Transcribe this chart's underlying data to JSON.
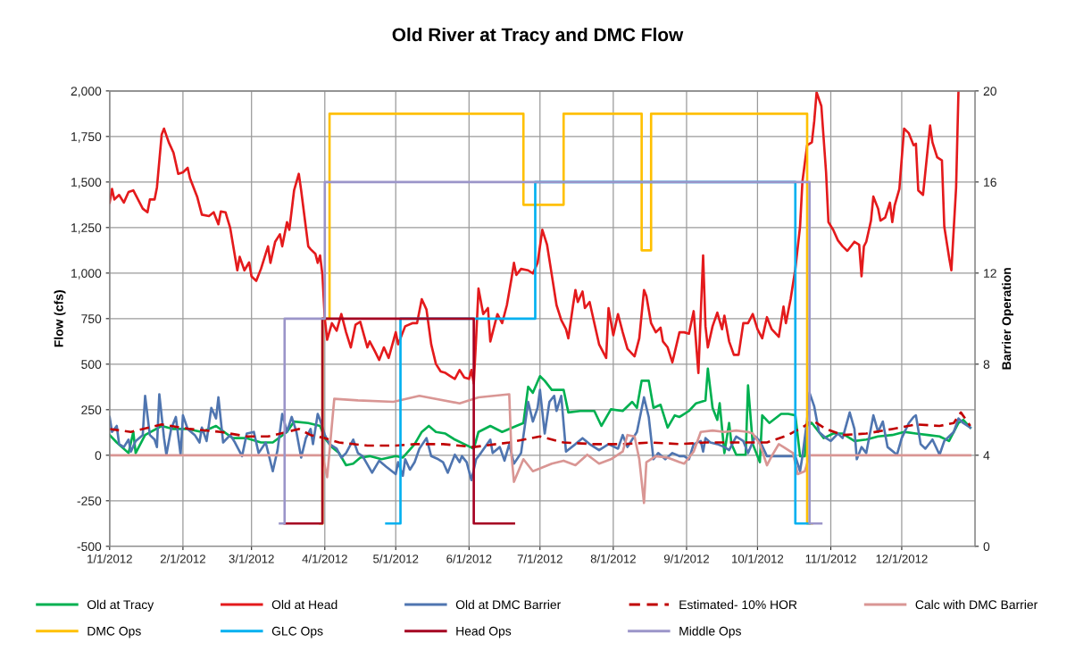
{
  "chart_data": {
    "type": "line",
    "title": "Old River at Tracy and DMC Flow",
    "ylabel": "Flow (cfs)",
    "y2label": "Barrier Operation",
    "xlim": [
      "2012-01-01",
      "2013-01-01"
    ],
    "xticks": [
      {
        "value": "2012-01-01",
        "label": "1/1/2012"
      },
      {
        "value": "2012-02-01",
        "label": "2/1/2012"
      },
      {
        "value": "2012-03-01",
        "label": "3/1/2012"
      },
      {
        "value": "2012-04-01",
        "label": "4/1/2012"
      },
      {
        "value": "2012-05-01",
        "label": "5/1/2012"
      },
      {
        "value": "2012-06-01",
        "label": "6/1/2012"
      },
      {
        "value": "2012-07-01",
        "label": "7/1/2012"
      },
      {
        "value": "2012-08-01",
        "label": "8/1/2012"
      },
      {
        "value": "2012-09-01",
        "label": "9/1/2012"
      },
      {
        "value": "2012-10-01",
        "label": "10/1/2012"
      },
      {
        "value": "2012-11-01",
        "label": "11/1/2012"
      },
      {
        "value": "2012-12-01",
        "label": "12/1/2012"
      }
    ],
    "ylim": [
      -500,
      2000
    ],
    "yticks": [
      -500,
      -250,
      0,
      250,
      500,
      750,
      {
        "value": 1000,
        "label": "1,000"
      },
      {
        "value": 1250,
        "label": "1,250"
      },
      {
        "value": 1500,
        "label": "1,500"
      },
      {
        "value": 1750,
        "label": "1,750"
      },
      {
        "value": 2000,
        "label": "2,000"
      }
    ],
    "y2lim": [
      0,
      20
    ],
    "y2ticks": [
      0,
      4,
      8,
      12,
      16,
      20
    ],
    "grid": true,
    "legend": "bottom",
    "marker": "none",
    "line_style": "solid",
    "series": [
      {
        "name": "Old at Tracy",
        "color": "#00b050",
        "x": [
          "2012-01-01",
          "2012-01-04",
          "2012-01-09",
          "2012-01-11",
          "2012-01-12",
          "2012-01-16",
          "2012-01-23",
          "2012-01-28",
          "2012-02-03",
          "2012-02-09",
          "2012-02-15",
          "2012-02-22",
          "2012-02-28",
          "2012-03-05",
          "2012-03-10",
          "2012-03-16",
          "2012-03-19",
          "2012-03-25",
          "2012-03-30",
          "2012-04-01",
          "2012-04-04",
          "2012-04-07",
          "2012-04-10",
          "2012-04-13",
          "2012-04-16",
          "2012-04-20",
          "2012-04-25",
          "2012-05-01",
          "2012-05-04",
          "2012-05-09",
          "2012-05-12",
          "2012-05-15",
          "2012-05-18",
          "2012-05-22",
          "2012-05-26",
          "2012-05-30",
          "2012-06-03",
          "2012-06-05",
          "2012-06-10",
          "2012-06-15",
          "2012-06-21",
          "2012-06-24",
          "2012-06-26",
          "2012-06-28",
          "2012-07-01",
          "2012-07-03",
          "2012-07-06",
          "2012-07-11",
          "2012-07-13",
          "2012-07-18",
          "2012-07-24",
          "2012-07-27",
          "2012-07-31",
          "2012-08-05",
          "2012-08-09",
          "2012-08-11",
          "2012-08-13",
          "2012-08-16",
          "2012-08-18",
          "2012-08-21",
          "2012-08-24",
          "2012-08-27",
          "2012-08-29",
          "2012-09-02",
          "2012-09-05",
          "2012-09-09",
          "2012-09-10",
          "2012-09-12",
          "2012-09-14",
          "2012-09-15",
          "2012-09-17",
          "2012-09-19",
          "2012-09-20",
          "2012-09-22",
          "2012-09-26",
          "2012-09-27",
          "2012-09-29",
          "2012-10-02",
          "2012-10-03",
          "2012-10-06",
          "2012-10-11",
          "2012-10-14",
          "2012-10-17",
          "2012-10-19",
          "2012-10-21",
          "2012-10-22",
          "2012-10-24",
          "2012-10-29",
          "2012-11-02",
          "2012-11-06",
          "2012-11-11",
          "2012-11-16",
          "2012-11-21",
          "2012-11-27",
          "2012-12-02",
          "2012-12-07",
          "2012-12-12",
          "2012-12-17",
          "2012-12-21",
          "2012-12-25",
          "2012-12-27",
          "2012-12-30"
        ],
        "values": [
          111,
          70,
          12,
          128,
          12,
          111,
          161,
          144,
          144,
          128,
          161,
          94,
          94,
          70,
          70,
          128,
          185,
          177,
          161,
          94,
          45,
          12,
          -55,
          -46,
          -13,
          -5,
          -22,
          -5,
          -13,
          61,
          128,
          161,
          128,
          119,
          86,
          61,
          36,
          128,
          161,
          128,
          161,
          177,
          376,
          343,
          434,
          409,
          359,
          359,
          235,
          243,
          243,
          161,
          252,
          243,
          293,
          260,
          409,
          409,
          260,
          277,
          152,
          219,
          210,
          243,
          285,
          301,
          475,
          260,
          194,
          285,
          12,
          177,
          61,
          3,
          3,
          384,
          61,
          -38,
          219,
          177,
          227,
          227,
          219,
          -5,
          -5,
          161,
          177,
          94,
          119,
          119,
          78,
          86,
          103,
          111,
          128,
          119,
          111,
          103,
          78,
          177,
          194,
          152
        ]
      },
      {
        "name": "Old at Head",
        "color": "#e41a1c",
        "x": [
          "2012-01-01",
          "2012-01-02",
          "2012-01-03",
          "2012-01-05",
          "2012-01-07",
          "2012-01-09",
          "2012-01-11",
          "2012-01-13",
          "2012-01-15",
          "2012-01-17",
          "2012-01-18",
          "2012-01-20",
          "2012-01-21",
          "2012-01-23",
          "2012-01-24",
          "2012-01-26",
          "2012-01-28",
          "2012-01-30",
          "2012-02-01",
          "2012-02-03",
          "2012-02-04",
          "2012-02-07",
          "2012-02-09",
          "2012-02-12",
          "2012-02-14",
          "2012-02-16",
          "2012-02-17",
          "2012-02-19",
          "2012-02-21",
          "2012-02-24",
          "2012-02-25",
          "2012-02-27",
          "2012-02-29",
          "2012-03-01",
          "2012-03-03",
          "2012-03-05",
          "2012-03-07",
          "2012-03-08",
          "2012-03-09",
          "2012-03-11",
          "2012-03-13",
          "2012-03-14",
          "2012-03-16",
          "2012-03-17",
          "2012-03-19",
          "2012-03-21",
          "2012-03-22",
          "2012-03-25",
          "2012-03-26",
          "2012-03-28",
          "2012-03-29",
          "2012-03-30",
          "2012-03-31",
          "2012-04-01",
          "2012-04-02",
          "2012-04-04",
          "2012-04-06",
          "2012-04-08",
          "2012-04-10",
          "2012-04-12",
          "2012-04-14",
          "2012-04-16",
          "2012-04-19",
          "2012-04-20",
          "2012-04-22",
          "2012-04-24",
          "2012-04-26",
          "2012-04-28",
          "2012-05-01",
          "2012-05-02",
          "2012-05-05",
          "2012-05-08",
          "2012-05-10",
          "2012-05-12",
          "2012-05-14",
          "2012-05-16",
          "2012-05-18",
          "2012-05-20",
          "2012-05-22",
          "2012-05-24",
          "2012-05-26",
          "2012-05-28",
          "2012-05-30",
          "2012-06-01",
          "2012-06-02",
          "2012-06-03",
          "2012-06-04",
          "2012-06-05",
          "2012-06-07",
          "2012-06-09",
          "2012-06-10",
          "2012-06-12",
          "2012-06-13",
          "2012-06-15",
          "2012-06-17",
          "2012-06-19",
          "2012-06-20",
          "2012-06-21",
          "2012-06-23",
          "2012-06-26",
          "2012-06-28",
          "2012-06-30",
          "2012-07-02",
          "2012-07-04",
          "2012-07-06",
          "2012-07-08",
          "2012-07-10",
          "2012-07-12",
          "2012-07-13",
          "2012-07-15",
          "2012-07-16",
          "2012-07-17",
          "2012-07-19",
          "2012-07-20",
          "2012-07-22",
          "2012-07-24",
          "2012-07-26",
          "2012-07-29",
          "2012-07-30",
          "2012-08-01",
          "2012-08-03",
          "2012-08-05",
          "2012-08-07",
          "2012-08-10",
          "2012-08-12",
          "2012-08-14",
          "2012-08-15",
          "2012-08-17",
          "2012-08-19",
          "2012-08-21",
          "2012-08-22",
          "2012-08-24",
          "2012-08-26",
          "2012-08-29",
          "2012-08-31",
          "2012-09-02",
          "2012-09-04",
          "2012-09-06",
          "2012-09-08",
          "2012-09-09",
          "2012-09-10",
          "2012-09-12",
          "2012-09-14",
          "2012-09-16",
          "2012-09-17",
          "2012-09-19",
          "2012-09-21",
          "2012-09-23",
          "2012-09-25",
          "2012-09-27",
          "2012-09-29",
          "2012-10-01",
          "2012-10-03",
          "2012-10-05",
          "2012-10-07",
          "2012-10-10",
          "2012-10-12",
          "2012-10-13",
          "2012-10-15",
          "2012-10-17",
          "2012-10-19",
          "2012-10-20",
          "2012-10-22",
          "2012-10-24",
          "2012-10-25",
          "2012-10-26",
          "2012-10-28",
          "2012-10-30",
          "2012-10-31",
          "2012-11-02",
          "2012-11-04",
          "2012-11-06",
          "2012-11-08",
          "2012-11-11",
          "2012-11-13",
          "2012-11-14",
          "2012-11-15",
          "2012-11-16",
          "2012-11-18",
          "2012-11-19",
          "2012-11-21",
          "2012-11-22",
          "2012-11-24",
          "2012-11-26",
          "2012-11-27",
          "2012-11-28",
          "2012-11-30",
          "2012-12-02",
          "2012-12-04",
          "2012-12-06",
          "2012-12-07",
          "2012-12-08",
          "2012-12-10",
          "2012-12-13",
          "2012-12-14",
          "2012-12-16",
          "2012-12-18",
          "2012-12-19",
          "2012-12-21",
          "2012-12-22",
          "2012-12-24",
          "2012-12-25"
        ],
        "values": [
          1387,
          1462,
          1404,
          1429,
          1387,
          1445,
          1454,
          1404,
          1354,
          1334,
          1404,
          1404,
          1470,
          1760,
          1793,
          1718,
          1661,
          1545,
          1553,
          1578,
          1520,
          1420,
          1321,
          1313,
          1334,
          1268,
          1338,
          1334,
          1247,
          1015,
          1089,
          1015,
          1059,
          982,
          957,
          1023,
          1106,
          1147,
          1056,
          1172,
          1213,
          1147,
          1280,
          1238,
          1454,
          1545,
          1454,
          1147,
          1131,
          1106,
          1056,
          1097,
          990,
          750,
          634,
          725,
          684,
          775,
          675,
          592,
          717,
          733,
          592,
          625,
          576,
          523,
          592,
          534,
          675,
          609,
          708,
          725,
          725,
          857,
          800,
          609,
          501,
          460,
          452,
          435,
          419,
          468,
          427,
          419,
          468,
          394,
          642,
          915,
          775,
          808,
          625,
          725,
          775,
          725,
          824,
          973,
          1056,
          990,
          1023,
          1015,
          998,
          1056,
          1238,
          1155,
          990,
          824,
          742,
          692,
          642,
          824,
          907,
          841,
          899,
          808,
          841,
          725,
          609,
          534,
          808,
          659,
          775,
          675,
          584,
          543,
          642,
          907,
          874,
          725,
          675,
          700,
          625,
          592,
          510,
          675,
          675,
          667,
          791,
          452,
          1097,
          708,
          592,
          708,
          783,
          692,
          766,
          625,
          551,
          551,
          725,
          725,
          775,
          692,
          642,
          758,
          692,
          650,
          816,
          725,
          857,
          1023,
          1255,
          1503,
          1702,
          1718,
          1834,
          1992,
          1917,
          1553,
          1280,
          1238,
          1180,
          1147,
          1122,
          1172,
          1155,
          982,
          1147,
          1172,
          1288,
          1420,
          1354,
          1288,
          1305,
          1387,
          1280,
          1371,
          1462,
          1793,
          1768,
          1702,
          1710,
          1454,
          1429,
          1810,
          1718,
          1636,
          1619,
          1255,
          1089,
          1015,
          1470,
          2000
        ]
      },
      {
        "name": "Old at DMC Barrier",
        "color": "#4f75b0",
        "x": [
          "2012-01-01",
          "2012-01-02",
          "2012-01-04",
          "2012-01-05",
          "2012-01-07",
          "2012-01-09",
          "2012-01-10",
          "2012-01-12",
          "2012-01-15",
          "2012-01-16",
          "2012-01-18",
          "2012-01-20",
          "2012-01-21",
          "2012-01-22",
          "2012-01-24",
          "2012-01-25",
          "2012-01-27",
          "2012-01-29",
          "2012-01-31",
          "2012-02-01",
          "2012-02-03",
          "2012-02-06",
          "2012-02-08",
          "2012-02-09",
          "2012-02-11",
          "2012-02-13",
          "2012-02-15",
          "2012-02-16",
          "2012-02-18",
          "2012-02-21",
          "2012-02-23",
          "2012-02-26",
          "2012-02-28",
          "2012-03-02",
          "2012-03-04",
          "2012-03-07",
          "2012-03-10",
          "2012-03-12",
          "2012-03-14",
          "2012-03-16",
          "2012-03-18",
          "2012-03-20",
          "2012-03-22",
          "2012-03-24",
          "2012-03-26",
          "2012-03-27",
          "2012-03-29",
          "2012-03-30",
          "2012-04-01",
          "2012-04-03",
          "2012-04-06",
          "2012-04-08",
          "2012-04-10",
          "2012-04-13",
          "2012-04-15",
          "2012-04-17",
          "2012-04-21",
          "2012-04-24",
          "2012-04-27",
          "2012-05-01",
          "2012-05-02",
          "2012-05-04",
          "2012-05-05",
          "2012-05-07",
          "2012-05-09",
          "2012-05-11",
          "2012-05-14",
          "2012-05-16",
          "2012-05-19",
          "2012-05-21",
          "2012-05-23",
          "2012-05-26",
          "2012-05-28",
          "2012-05-29",
          "2012-05-31",
          "2012-06-02",
          "2012-06-04",
          "2012-06-06",
          "2012-06-10",
          "2012-06-11",
          "2012-06-14",
          "2012-06-16",
          "2012-06-18",
          "2012-06-20",
          "2012-06-23",
          "2012-06-26",
          "2012-06-28",
          "2012-06-30",
          "2012-07-01",
          "2012-07-03",
          "2012-07-05",
          "2012-07-07",
          "2012-07-08",
          "2012-07-10",
          "2012-07-12",
          "2012-07-16",
          "2012-07-19",
          "2012-07-22",
          "2012-07-26",
          "2012-07-30",
          "2012-08-03",
          "2012-08-05",
          "2012-08-07",
          "2012-08-11",
          "2012-08-14",
          "2012-08-16",
          "2012-08-18",
          "2012-08-20",
          "2012-08-23",
          "2012-08-26",
          "2012-08-29",
          "2012-08-31",
          "2012-09-02",
          "2012-09-04",
          "2012-09-07",
          "2012-09-08",
          "2012-09-09",
          "2012-09-11",
          "2012-09-14",
          "2012-09-17",
          "2012-09-19",
          "2012-09-22",
          "2012-09-25",
          "2012-09-27",
          "2012-09-30",
          "2012-10-02",
          "2012-10-05",
          "2012-10-08",
          "2012-10-12",
          "2012-10-17",
          "2012-10-19",
          "2012-10-20",
          "2012-10-22",
          "2012-10-23",
          "2012-10-25",
          "2012-10-27",
          "2012-10-30",
          "2012-11-01",
          "2012-11-04",
          "2012-11-06",
          "2012-11-09",
          "2012-11-11",
          "2012-11-12",
          "2012-11-14",
          "2012-11-16",
          "2012-11-19",
          "2012-11-21",
          "2012-11-23",
          "2012-11-25",
          "2012-11-29",
          "2012-12-01",
          "2012-12-04",
          "2012-12-06",
          "2012-12-07",
          "2012-12-09",
          "2012-12-11",
          "2012-12-14",
          "2012-12-17",
          "2012-12-19",
          "2012-12-23",
          "2012-12-25",
          "2012-12-27",
          "2012-12-30"
        ],
        "values": [
          210,
          128,
          161,
          61,
          45,
          86,
          20,
          78,
          111,
          326,
          111,
          86,
          45,
          335,
          94,
          3,
          144,
          210,
          3,
          219,
          144,
          111,
          70,
          152,
          78,
          260,
          202,
          318,
          70,
          111,
          70,
          -5,
          119,
          128,
          12,
          70,
          -88,
          28,
          227,
          128,
          210,
          128,
          -13,
          94,
          144,
          61,
          227,
          194,
          111,
          61,
          36,
          -13,
          12,
          86,
          12,
          -5,
          -96,
          -30,
          -63,
          -104,
          -38,
          -113,
          -22,
          -79,
          -38,
          36,
          94,
          -5,
          -22,
          -38,
          -96,
          3,
          -38,
          -5,
          -38,
          -137,
          -22,
          12,
          86,
          12,
          45,
          -30,
          61,
          -46,
          12,
          293,
          185,
          260,
          359,
          119,
          293,
          326,
          243,
          326,
          20,
          61,
          94,
          61,
          28,
          61,
          36,
          111,
          45,
          128,
          318,
          210,
          -22,
          12,
          -22,
          12,
          -5,
          -5,
          -22,
          61,
          78,
          20,
          94,
          70,
          61,
          45,
          28,
          103,
          78,
          12,
          103,
          78,
          -5,
          -5,
          -5,
          -5,
          -88,
          -5,
          194,
          343,
          268,
          128,
          94,
          78,
          119,
          94,
          235,
          144,
          -22,
          45,
          12,
          219,
          128,
          185,
          45,
          3,
          94,
          177,
          210,
          219,
          61,
          36,
          86,
          3,
          78,
          128,
          202,
          177,
          152
        ]
      },
      {
        "name": "Estimated- 10% HOR",
        "color": "#c00000",
        "line_style": "dashed",
        "x": [
          "2012-01-01",
          "2012-01-10",
          "2012-01-23",
          "2012-02-04",
          "2012-02-17",
          "2012-02-28",
          "2012-03-08",
          "2012-03-16",
          "2012-03-21",
          "2012-03-26",
          "2012-04-01",
          "2012-04-07",
          "2012-04-19",
          "2012-05-01",
          "2012-05-09",
          "2012-05-21",
          "2012-06-03",
          "2012-06-18",
          "2012-07-01",
          "2012-07-11",
          "2012-07-24",
          "2012-08-05",
          "2012-08-17",
          "2012-08-29",
          "2012-09-09",
          "2012-09-22",
          "2012-10-05",
          "2012-10-14",
          "2012-10-21",
          "2012-10-24",
          "2012-10-30",
          "2012-11-06",
          "2012-11-16",
          "2012-11-27",
          "2012-12-07",
          "2012-12-17",
          "2012-12-23",
          "2012-12-26",
          "2012-12-30"
        ],
        "values": [
          144,
          128,
          169,
          144,
          128,
          103,
          103,
          128,
          144,
          111,
          94,
          70,
          53,
          53,
          61,
          61,
          45,
          70,
          103,
          70,
          61,
          61,
          70,
          61,
          70,
          70,
          70,
          111,
          161,
          194,
          144,
          111,
          119,
          144,
          169,
          161,
          177,
          235,
          161
        ]
      },
      {
        "name": "Calc with DMC Barrier",
        "color": "#d99694",
        "x": [
          "2012-01-01",
          "2012-03-31",
          "2012-04-02",
          "2012-04-05",
          "2012-04-15",
          "2012-04-30",
          "2012-05-11",
          "2012-05-28",
          "2012-06-05",
          "2012-06-18",
          "2012-06-19",
          "2012-06-20",
          "2012-06-24",
          "2012-06-28",
          "2012-07-06",
          "2012-07-11",
          "2012-07-16",
          "2012-07-21",
          "2012-07-26",
          "2012-07-31",
          "2012-08-05",
          "2012-08-07",
          "2012-08-10",
          "2012-08-12",
          "2012-08-14",
          "2012-08-15",
          "2012-08-19",
          "2012-08-24",
          "2012-08-29",
          "2012-08-31",
          "2012-09-04",
          "2012-09-07",
          "2012-09-12",
          "2012-09-17",
          "2012-09-22",
          "2012-09-27",
          "2012-09-29",
          "2012-10-02",
          "2012-10-05",
          "2012-10-07",
          "2012-10-10",
          "2012-10-12",
          "2012-10-16",
          "2012-10-18",
          "2012-10-21",
          "2012-10-23",
          "2012-12-30"
        ],
        "values": [
          0,
          0,
          -121,
          310,
          301,
          293,
          326,
          285,
          318,
          335,
          -5,
          -146,
          -22,
          -88,
          -46,
          -30,
          -55,
          3,
          -46,
          -22,
          20,
          111,
          103,
          -22,
          -262,
          -38,
          -5,
          -13,
          -38,
          -46,
          20,
          128,
          136,
          128,
          136,
          128,
          119,
          61,
          -55,
          -5,
          61,
          45,
          12,
          -104,
          -88,
          0,
          0
        ]
      },
      {
        "name": "DMC Ops",
        "color": "#ffc000",
        "type": "step",
        "axis": "y2",
        "x": [
          "2012-03-30",
          "2012-03-31",
          "2012-04-03",
          "2012-06-24",
          "2012-07-11",
          "2012-08-13",
          "2012-08-17",
          "2012-10-22",
          "2012-10-24"
        ],
        "values": [
          1,
          10,
          19,
          15,
          19,
          13,
          19,
          1,
          1
        ]
      },
      {
        "name": "GLC Ops",
        "color": "#00b0f0",
        "type": "step",
        "axis": "y2",
        "x": [
          "2012-04-27",
          "2012-05-03",
          "2012-06-29",
          "2012-10-17",
          "2012-10-23"
        ],
        "values": [
          1,
          10,
          16,
          1,
          1
        ]
      },
      {
        "name": "Head Ops",
        "color": "#a50021",
        "type": "step",
        "axis": "y2",
        "x": [
          "2012-03-15",
          "2012-03-31",
          "2012-06-03",
          "2012-06-20"
        ],
        "values": [
          1,
          10,
          1,
          1
        ]
      },
      {
        "name": "Middle Ops",
        "color": "#9b95c9",
        "type": "step",
        "axis": "y2",
        "x": [
          "2012-03-13",
          "2012-03-15",
          "2012-04-01",
          "2012-10-23",
          "2012-10-28"
        ],
        "values": [
          1,
          10,
          16,
          1,
          1
        ]
      }
    ]
  }
}
